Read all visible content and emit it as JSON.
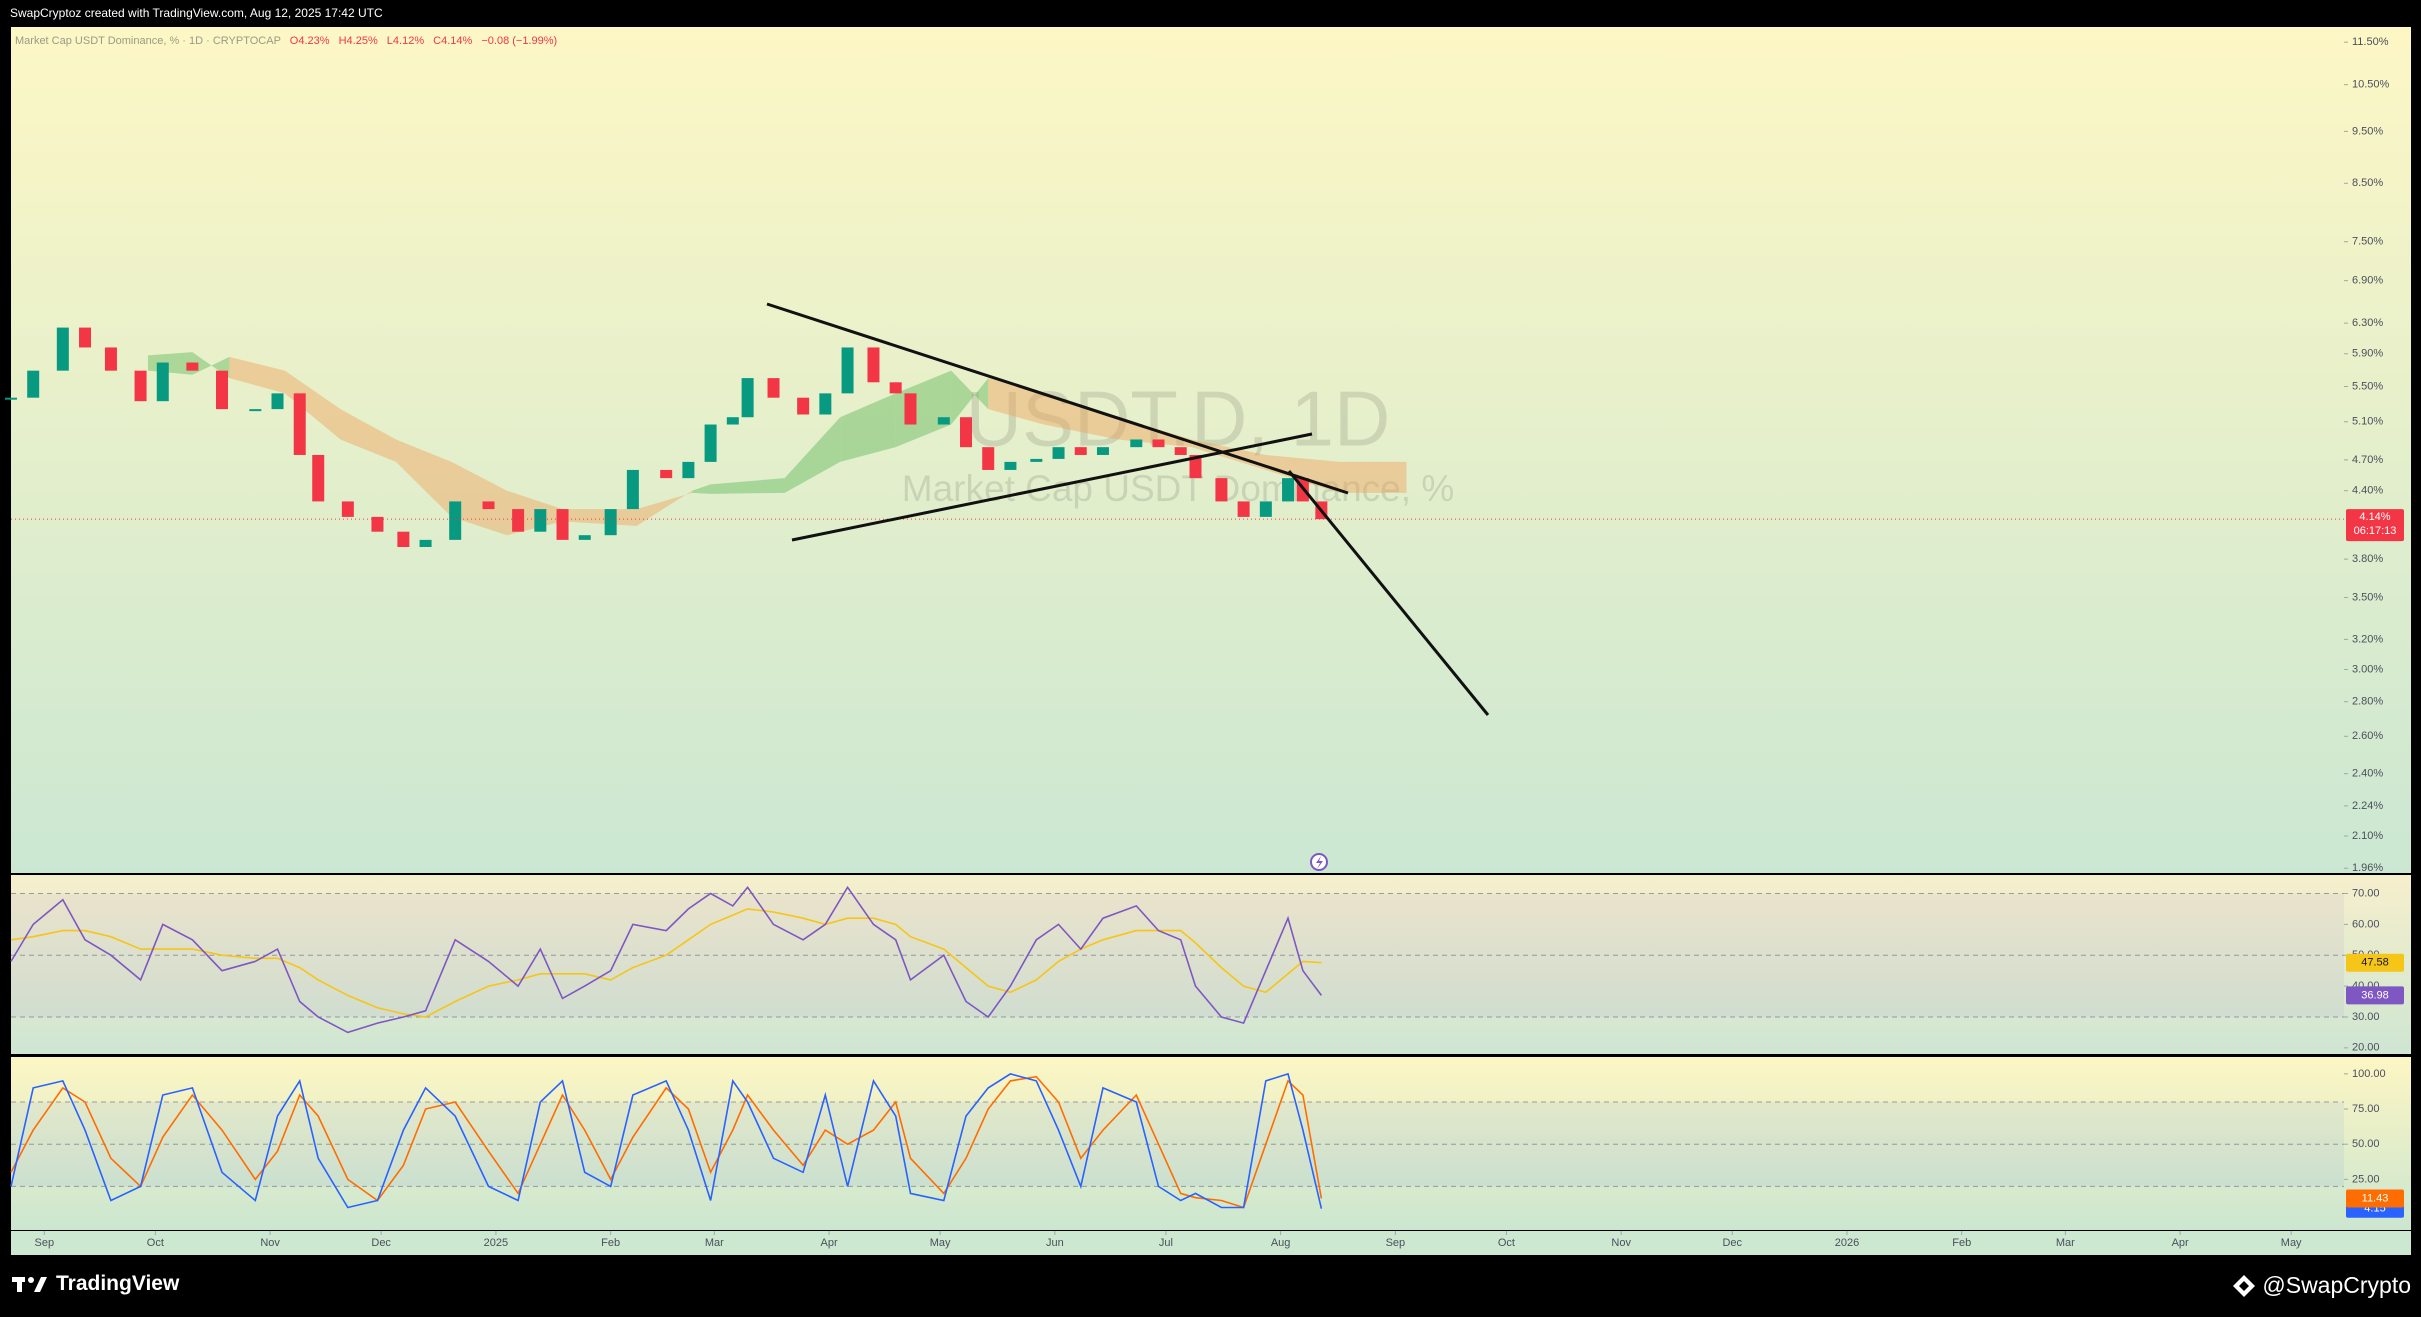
{
  "header": {
    "credit": "SwapCryptoz created with TradingView.com, Aug 12, 2025 17:42 UTC"
  },
  "footer": {
    "brand": "TradingView",
    "author": "@SwapCrypto"
  },
  "chart_data": [
    {
      "type": "candlestick",
      "legend": {
        "name": "Market Cap USDT Dominance, % · 1D · CRYPTOCAP",
        "ohlc": [
          "O4.23%",
          "H4.25%",
          "L4.12%",
          "C4.14%",
          "−0.08 (−1.99%)"
        ]
      },
      "watermark": [
        "USDT.D, 1D",
        "Market Cap USDT Dominance, %"
      ],
      "log_scale": true,
      "up_color": "#089981",
      "down_color": "#f23645",
      "x": [
        -9,
        -3,
        5,
        11,
        18,
        26,
        32,
        40,
        48,
        57,
        63,
        69,
        74,
        82,
        90,
        97,
        103,
        111,
        120,
        128,
        134,
        140,
        146,
        153,
        159,
        168,
        174,
        180,
        186,
        190,
        197,
        205,
        211,
        217,
        224,
        230,
        234,
        243,
        249,
        255,
        261,
        268,
        274,
        280,
        286,
        295,
        301,
        307,
        311,
        318,
        324,
        330,
        336,
        340,
        345
      ],
      "values": [
        5.37,
        5.69,
        6.24,
        5.98,
        5.69,
        5.33,
        5.79,
        5.69,
        5.24,
        5.24,
        5.42,
        4.75,
        4.3,
        4.16,
        4.03,
        3.9,
        3.96,
        4.3,
        4.23,
        4.03,
        4.23,
        3.96,
        4.0,
        4.23,
        4.6,
        4.52,
        4.68,
        5.07,
        5.15,
        5.6,
        5.37,
        5.18,
        5.42,
        5.98,
        5.55,
        5.42,
        5.07,
        5.15,
        4.83,
        4.6,
        4.68,
        4.71,
        4.83,
        4.75,
        4.83,
        4.91,
        4.83,
        4.75,
        4.52,
        4.3,
        4.16,
        4.3,
        4.52,
        4.3,
        4.14
      ],
      "price_label": {
        "value": 4.14,
        "label": "4.14%"
      },
      "countdown": "06:17:13",
      "cloud": {
        "x": [
          28,
          40,
          50,
          65,
          80,
          95,
          110,
          125,
          140,
          160,
          175,
          180,
          200,
          215,
          230,
          245,
          255,
          270,
          290,
          310,
          330,
          350,
          368
        ],
        "span_a": [
          5.88,
          5.92,
          5.6,
          5.42,
          4.91,
          4.68,
          4.16,
          4.0,
          4.12,
          4.08,
          4.4,
          4.46,
          4.52,
          5.15,
          5.42,
          5.69,
          5.24,
          5.07,
          4.91,
          4.83,
          4.6,
          4.38,
          4.38
        ],
        "span_b": [
          5.69,
          5.64,
          5.86,
          5.69,
          5.24,
          4.91,
          4.68,
          4.4,
          4.23,
          4.23,
          4.38,
          4.37,
          4.38,
          4.68,
          4.83,
          5.07,
          5.6,
          5.42,
          5.15,
          4.91,
          4.75,
          4.68,
          4.68
        ],
        "bull_color": "#5fb85a",
        "bear_color": "#f0a25e"
      },
      "xlim": [
        -9,
        621
      ],
      "xticks": [
        {
          "value": 0,
          "label": "Sep"
        },
        {
          "value": 30,
          "label": "Oct"
        },
        {
          "value": 61,
          "label": "Nov"
        },
        {
          "value": 91,
          "label": "Dec"
        },
        {
          "value": 122,
          "label": "2025"
        },
        {
          "value": 153,
          "label": "Feb"
        },
        {
          "value": 181,
          "label": "Mar"
        },
        {
          "value": 212,
          "label": "Apr"
        },
        {
          "value": 242,
          "label": "May"
        },
        {
          "value": 273,
          "label": "Jun"
        },
        {
          "value": 303,
          "label": "Jul"
        },
        {
          "value": 334,
          "label": "Aug"
        },
        {
          "value": 365,
          "label": "Sep"
        },
        {
          "value": 395,
          "label": "Oct"
        },
        {
          "value": 426,
          "label": "Nov"
        },
        {
          "value": 456,
          "label": "Dec"
        },
        {
          "value": 487,
          "label": "2026"
        },
        {
          "value": 518,
          "label": "Feb"
        },
        {
          "value": 546,
          "label": "Mar"
        },
        {
          "value": 577,
          "label": "Apr"
        },
        {
          "value": 607,
          "label": "May"
        }
      ],
      "ylim": [
        1.94,
        11.88
      ],
      "yticks": [
        {
          "value": 11.5,
          "label": "11.50%"
        },
        {
          "value": 10.5,
          "label": "10.50%"
        },
        {
          "value": 9.5,
          "label": "9.50%"
        },
        {
          "value": 8.5,
          "label": "8.50%"
        },
        {
          "value": 7.5,
          "label": "7.50%"
        },
        {
          "value": 6.9,
          "label": "6.90%"
        },
        {
          "value": 6.3,
          "label": "6.30%"
        },
        {
          "value": 5.9,
          "label": "5.90%"
        },
        {
          "value": 5.5,
          "label": "5.50%"
        },
        {
          "value": 5.1,
          "label": "5.10%"
        },
        {
          "value": 4.7,
          "label": "4.70%"
        },
        {
          "value": 4.4,
          "label": "4.40%"
        },
        {
          "value": 3.8,
          "label": "3.80%"
        },
        {
          "value": 3.5,
          "label": "3.50%"
        },
        {
          "value": 3.2,
          "label": "3.20%"
        },
        {
          "value": 3.0,
          "label": "3.00%"
        },
        {
          "value": 2.8,
          "label": "2.80%"
        },
        {
          "value": 2.6,
          "label": "2.60%"
        },
        {
          "value": 2.4,
          "label": "2.40%"
        },
        {
          "value": 2.24,
          "label": "2.24%"
        },
        {
          "value": 2.1,
          "label": "2.10%"
        },
        {
          "value": 1.96,
          "label": "1.96%"
        }
      ]
    },
    {
      "type": "line",
      "x": [
        -9,
        -3,
        5,
        11,
        18,
        26,
        32,
        40,
        48,
        57,
        63,
        69,
        74,
        82,
        90,
        97,
        103,
        111,
        120,
        128,
        134,
        140,
        146,
        153,
        159,
        168,
        174,
        180,
        186,
        190,
        197,
        205,
        211,
        217,
        224,
        230,
        234,
        243,
        249,
        255,
        261,
        268,
        274,
        280,
        286,
        295,
        301,
        307,
        311,
        318,
        324,
        330,
        336,
        340,
        345
      ],
      "series": [
        {
          "color": "#7e57c2",
          "text_color": "#ffffff",
          "values": [
            48,
            60,
            68,
            55,
            50,
            42,
            60,
            55,
            45,
            48,
            52,
            35,
            30,
            25,
            28,
            30,
            32,
            55,
            48,
            40,
            52,
            36,
            40,
            45,
            60,
            58,
            65,
            70,
            66,
            72,
            60,
            55,
            60,
            72,
            60,
            55,
            42,
            50,
            35,
            30,
            40,
            55,
            60,
            52,
            62,
            66,
            58,
            55,
            40,
            30,
            28,
            45,
            62,
            45,
            36.98
          ]
        },
        {
          "color": "#f5c518",
          "text_color": "#131722",
          "values": [
            55,
            56,
            58,
            58,
            56,
            52,
            52,
            52,
            50,
            49,
            49,
            46,
            42,
            37,
            33,
            31,
            30,
            35,
            40,
            42,
            44,
            44,
            44,
            42,
            46,
            50,
            55,
            60,
            63,
            65,
            64,
            62,
            60,
            62,
            62,
            60,
            56,
            52,
            46,
            40,
            38,
            42,
            48,
            52,
            55,
            58,
            58,
            58,
            54,
            46,
            40,
            38,
            44,
            48,
            47.58
          ]
        }
      ],
      "band": [
        30,
        70
      ],
      "band_lines": [
        30,
        50,
        70
      ],
      "band_color": "#7e57c2",
      "ylim": [
        18,
        76
      ],
      "yticks": [
        {
          "value": 20,
          "label": "20.00"
        },
        {
          "value": 30,
          "label": "30.00"
        },
        {
          "value": 40,
          "label": "40.00"
        },
        {
          "value": 50,
          "label": "50.00"
        },
        {
          "value": 60,
          "label": "60.00"
        },
        {
          "value": 70,
          "label": "70.00"
        }
      ]
    },
    {
      "type": "line",
      "x": [
        -9,
        -3,
        5,
        11,
        18,
        26,
        32,
        40,
        48,
        57,
        63,
        69,
        74,
        82,
        90,
        97,
        103,
        111,
        120,
        128,
        134,
        140,
        146,
        153,
        159,
        168,
        174,
        180,
        186,
        190,
        197,
        205,
        211,
        217,
        224,
        230,
        234,
        243,
        249,
        255,
        261,
        268,
        274,
        280,
        286,
        295,
        301,
        307,
        311,
        318,
        324,
        330,
        336,
        340,
        345
      ],
      "series": [
        {
          "color": "#2962ff",
          "text_color": "#ffffff",
          "values": [
            20,
            90,
            95,
            60,
            10,
            20,
            85,
            90,
            30,
            10,
            70,
            95,
            40,
            5,
            10,
            60,
            90,
            70,
            20,
            10,
            80,
            95,
            30,
            20,
            85,
            95,
            60,
            10,
            95,
            80,
            40,
            30,
            85,
            20,
            95,
            70,
            15,
            10,
            70,
            90,
            100,
            95,
            60,
            20,
            90,
            80,
            20,
            10,
            15,
            5,
            5,
            95,
            100,
            60,
            4.15
          ]
        },
        {
          "color": "#ff6d00",
          "text_color": "#ffffff",
          "values": [
            30,
            60,
            90,
            80,
            40,
            20,
            55,
            85,
            60,
            25,
            45,
            85,
            70,
            25,
            10,
            35,
            75,
            80,
            45,
            15,
            50,
            85,
            60,
            25,
            55,
            90,
            75,
            30,
            60,
            85,
            60,
            35,
            60,
            50,
            60,
            80,
            40,
            15,
            40,
            75,
            95,
            98,
            80,
            40,
            60,
            85,
            50,
            15,
            12,
            10,
            5,
            50,
            95,
            85,
            11.43
          ]
        }
      ],
      "band": [
        20,
        80
      ],
      "band_lines": [
        20,
        50,
        80
      ],
      "band_color": "#2962ff",
      "ylim": [
        -11,
        112
      ],
      "yticks": [
        {
          "value": 25,
          "label": "25.00"
        },
        {
          "value": 50,
          "label": "50.00"
        },
        {
          "value": 75,
          "label": "75.00"
        },
        {
          "value": 100,
          "label": "100.00"
        }
      ]
    }
  ]
}
